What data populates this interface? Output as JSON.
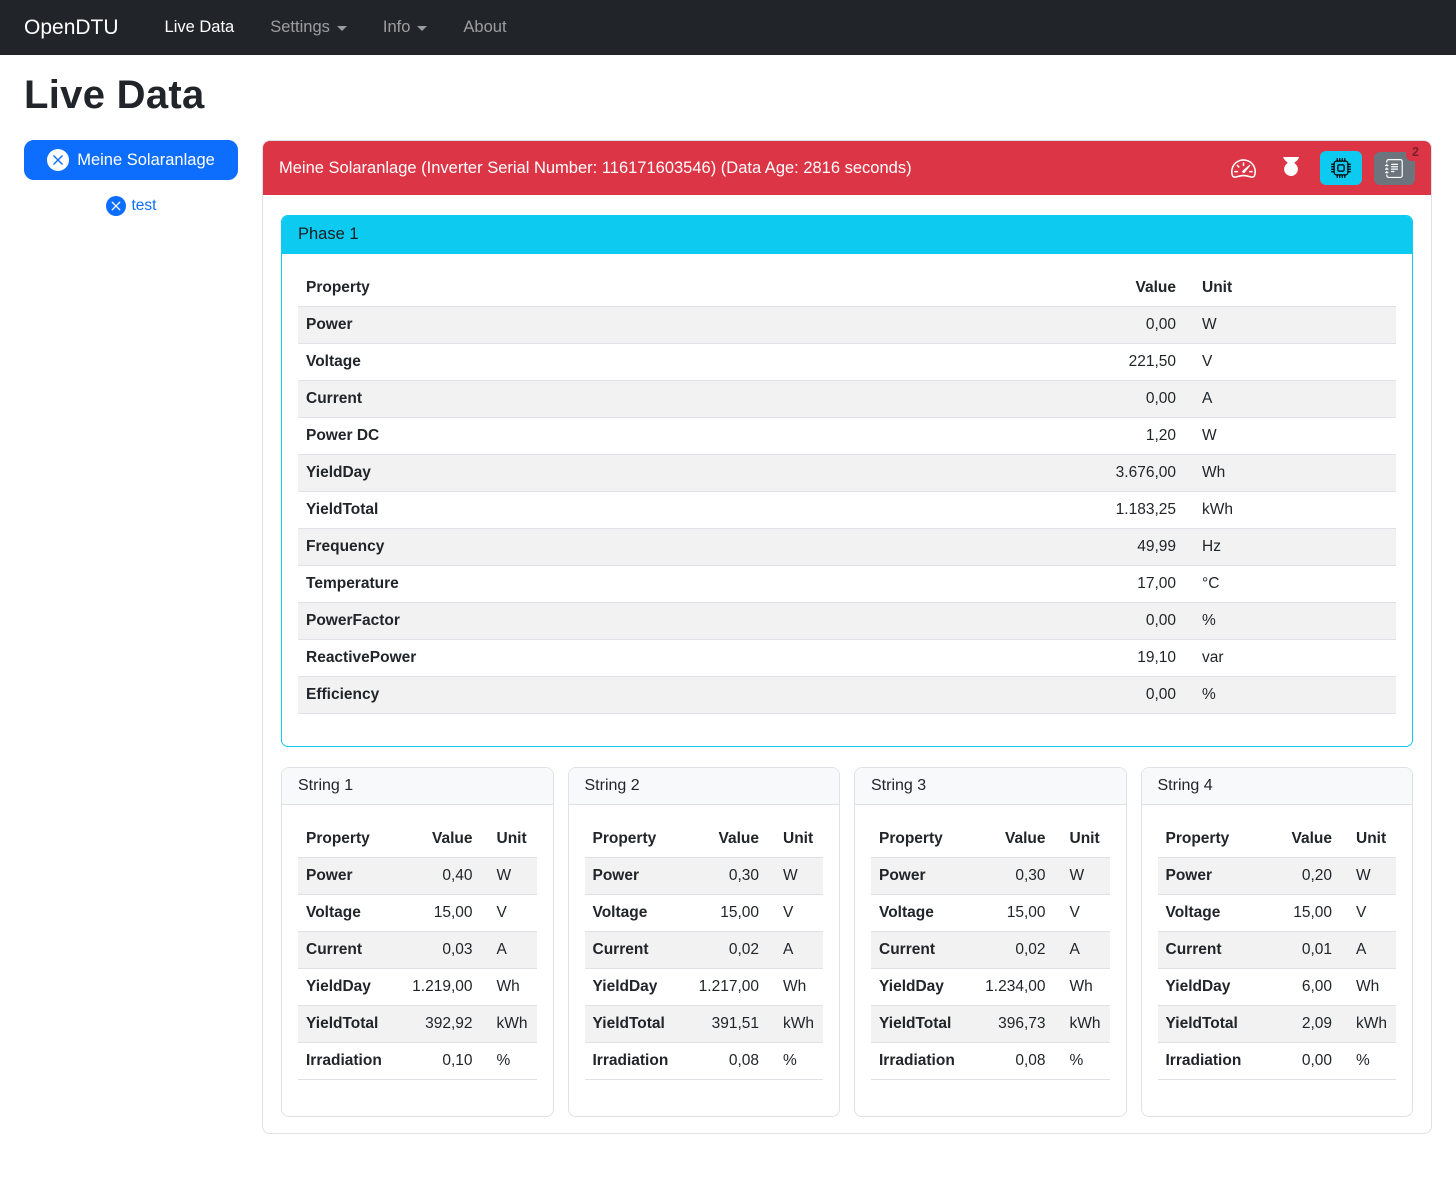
{
  "navbar": {
    "brand": "OpenDTU",
    "items": [
      {
        "label": "Live Data",
        "active": true,
        "dropdown": false
      },
      {
        "label": "Settings",
        "active": false,
        "dropdown": true
      },
      {
        "label": "Info",
        "active": false,
        "dropdown": true
      },
      {
        "label": "About",
        "active": false,
        "dropdown": false
      }
    ]
  },
  "page": {
    "title": "Live Data"
  },
  "sidebar": {
    "selected_inverter": "Meine Solaranlage",
    "other_inverter": "test"
  },
  "inverter": {
    "header": "Meine Solaranlage (Inverter Serial Number: 116171603546) (Data Age: 2816 seconds)",
    "events_badge": "2",
    "colors": {
      "header_bg": "#dc3545",
      "phase_header_bg": "#0dcaf0",
      "cpu_button_bg": "#0dcaf0",
      "journal_button_bg": "#6c757d",
      "primary_blue": "#0d6efd"
    },
    "phase": {
      "title": "Phase 1",
      "columns": [
        "Property",
        "Value",
        "Unit"
      ],
      "rows": [
        [
          "Power",
          "0,00",
          "W"
        ],
        [
          "Voltage",
          "221,50",
          "V"
        ],
        [
          "Current",
          "0,00",
          "A"
        ],
        [
          "Power DC",
          "1,20",
          "W"
        ],
        [
          "YieldDay",
          "3.676,00",
          "Wh"
        ],
        [
          "YieldTotal",
          "1.183,25",
          "kWh"
        ],
        [
          "Frequency",
          "49,99",
          "Hz"
        ],
        [
          "Temperature",
          "17,00",
          "°C"
        ],
        [
          "PowerFactor",
          "0,00",
          "%"
        ],
        [
          "ReactivePower",
          "19,10",
          "var"
        ],
        [
          "Efficiency",
          "0,00",
          "%"
        ]
      ]
    },
    "strings": [
      {
        "title": "String 1",
        "columns": [
          "Property",
          "Value",
          "Unit"
        ],
        "rows": [
          [
            "Power",
            "0,40",
            "W"
          ],
          [
            "Voltage",
            "15,00",
            "V"
          ],
          [
            "Current",
            "0,03",
            "A"
          ],
          [
            "YieldDay",
            "1.219,00",
            "Wh"
          ],
          [
            "YieldTotal",
            "392,92",
            "kWh"
          ],
          [
            "Irradiation",
            "0,10",
            "%"
          ]
        ]
      },
      {
        "title": "String 2",
        "columns": [
          "Property",
          "Value",
          "Unit"
        ],
        "rows": [
          [
            "Power",
            "0,30",
            "W"
          ],
          [
            "Voltage",
            "15,00",
            "V"
          ],
          [
            "Current",
            "0,02",
            "A"
          ],
          [
            "YieldDay",
            "1.217,00",
            "Wh"
          ],
          [
            "YieldTotal",
            "391,51",
            "kWh"
          ],
          [
            "Irradiation",
            "0,08",
            "%"
          ]
        ]
      },
      {
        "title": "String 3",
        "columns": [
          "Property",
          "Value",
          "Unit"
        ],
        "rows": [
          [
            "Power",
            "0,30",
            "W"
          ],
          [
            "Voltage",
            "15,00",
            "V"
          ],
          [
            "Current",
            "0,02",
            "A"
          ],
          [
            "YieldDay",
            "1.234,00",
            "Wh"
          ],
          [
            "YieldTotal",
            "396,73",
            "kWh"
          ],
          [
            "Irradiation",
            "0,08",
            "%"
          ]
        ]
      },
      {
        "title": "String 4",
        "columns": [
          "Property",
          "Value",
          "Unit"
        ],
        "rows": [
          [
            "Power",
            "0,20",
            "W"
          ],
          [
            "Voltage",
            "15,00",
            "V"
          ],
          [
            "Current",
            "0,01",
            "A"
          ],
          [
            "YieldDay",
            "6,00",
            "Wh"
          ],
          [
            "YieldTotal",
            "2,09",
            "kWh"
          ],
          [
            "Irradiation",
            "0,00",
            "%"
          ]
        ]
      }
    ]
  }
}
